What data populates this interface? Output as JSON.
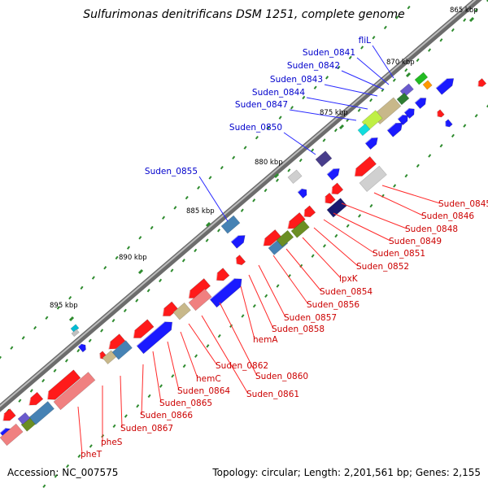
{
  "title": "Sulfurimonas denitrificans DSM 1251, complete genome",
  "accession": "Accession: NC_007575",
  "topology": "Topology: circular; Length: 2,201,561 bp; Genes: 2,155",
  "colors": {
    "forward_gene": "#1a1aff",
    "reverse_gene": "#ff1a1a",
    "backbone": "#8a8a8a",
    "tick": "#2e8b2e",
    "label_forward": "#0000cc",
    "label_reverse": "#cc0000"
  },
  "kbp_ticks": [
    "865 kbp",
    "870 kbp",
    "875 kbp",
    "880 kbp",
    "885 kbp",
    "890 kbp",
    "895 kbp"
  ],
  "forward_labels": [
    "fliL",
    "Suden_0841",
    "Suden_0842",
    "Suden_0843",
    "Suden_0844",
    "Suden_0847",
    "Suden_0850",
    "Suden_0855"
  ],
  "reverse_labels": [
    "Suden_0845",
    "Suden_0846",
    "Suden_0848",
    "Suden_0849",
    "Suden_0851",
    "Suden_0852",
    "lpxK",
    "Suden_0854",
    "Suden_0856",
    "Suden_0857",
    "Suden_0858",
    "hemA",
    "Suden_0860",
    "Suden_0861",
    "Suden_0862",
    "hemC",
    "Suden_0864",
    "Suden_0865",
    "Suden_0866",
    "Suden_0867",
    "pheS",
    "pheT"
  ]
}
